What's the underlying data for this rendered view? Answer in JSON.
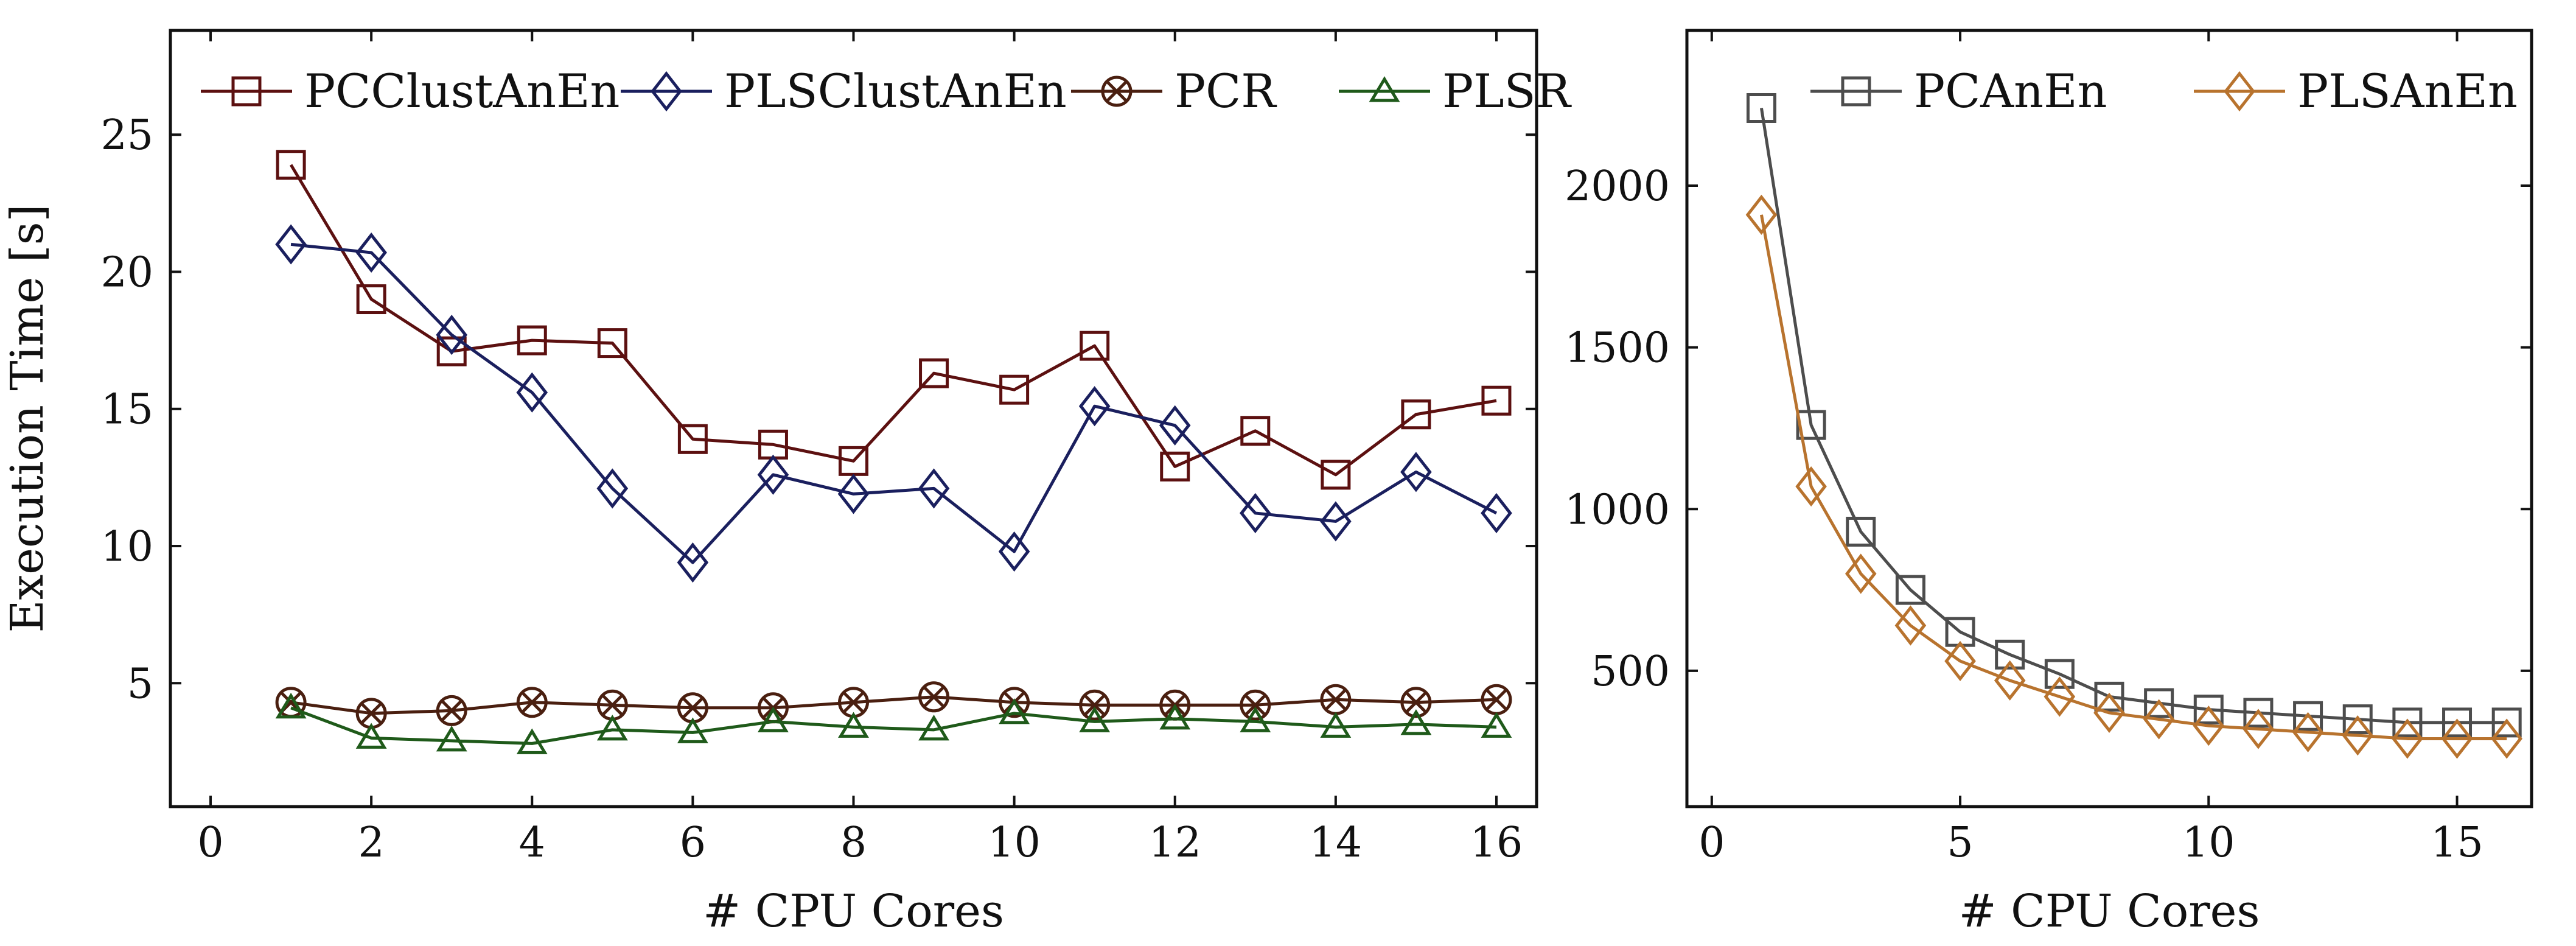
{
  "chart_data": [
    {
      "type": "line",
      "xlabel": "# CPU Cores",
      "ylabel": "Execution Time [s]",
      "xlim": [
        -0.5,
        16.5
      ],
      "ylim": [
        0.5,
        28.8
      ],
      "xticks": [
        0,
        2,
        4,
        6,
        8,
        10,
        12,
        14,
        16
      ],
      "yticks": [
        5,
        10,
        15,
        20,
        25
      ],
      "grid": false,
      "legend_position": "top",
      "x": [
        1,
        2,
        3,
        4,
        5,
        6,
        7,
        8,
        9,
        10,
        11,
        12,
        13,
        14,
        15,
        16
      ],
      "series": [
        {
          "name": "PCClustAnEn",
          "color": "#5c1010",
          "marker": "square",
          "values": [
            23.9,
            19.0,
            17.1,
            17.5,
            17.4,
            13.9,
            13.7,
            13.1,
            16.3,
            15.7,
            17.3,
            12.9,
            14.2,
            12.6,
            14.8,
            15.3
          ]
        },
        {
          "name": "PLSClustAnEn",
          "color": "#1a1f5e",
          "marker": "diamond",
          "values": [
            21.0,
            20.7,
            17.7,
            15.6,
            12.1,
            9.4,
            12.6,
            11.9,
            12.1,
            9.8,
            15.1,
            14.4,
            11.2,
            10.9,
            12.7,
            11.2
          ]
        },
        {
          "name": "PCR",
          "color": "#4a1f10",
          "marker": "circle-x",
          "values": [
            4.3,
            3.9,
            4.0,
            4.3,
            4.2,
            4.1,
            4.1,
            4.3,
            4.5,
            4.3,
            4.2,
            4.2,
            4.2,
            4.4,
            4.3,
            4.4
          ]
        },
        {
          "name": "PLSR",
          "color": "#1f5a1a",
          "marker": "triangle",
          "values": [
            4.1,
            3.0,
            2.9,
            2.8,
            3.3,
            3.2,
            3.6,
            3.4,
            3.3,
            3.9,
            3.6,
            3.7,
            3.6,
            3.4,
            3.5,
            3.4
          ]
        }
      ]
    },
    {
      "type": "line",
      "xlabel": "# CPU Cores",
      "ylabel": "",
      "xlim": [
        -0.5,
        16.5
      ],
      "ylim": [
        80,
        2480
      ],
      "xticks": [
        0,
        5,
        10,
        15
      ],
      "yticks": [
        500,
        1000,
        1500,
        2000
      ],
      "grid": false,
      "legend_position": "top",
      "x": [
        1,
        2,
        3,
        4,
        5,
        6,
        7,
        8,
        9,
        10,
        11,
        12,
        13,
        14,
        15,
        16
      ],
      "series": [
        {
          "name": "PCAnEn",
          "color": "#4d4d4d",
          "marker": "square",
          "values": [
            2240,
            1260,
            930,
            750,
            620,
            550,
            490,
            420,
            400,
            380,
            370,
            360,
            350,
            340,
            340,
            340
          ]
        },
        {
          "name": "PLSAnEn",
          "color": "#b8732e",
          "marker": "diamond",
          "values": [
            1910,
            1070,
            800,
            640,
            530,
            470,
            420,
            370,
            350,
            330,
            320,
            310,
            300,
            290,
            290,
            290
          ]
        }
      ]
    }
  ]
}
